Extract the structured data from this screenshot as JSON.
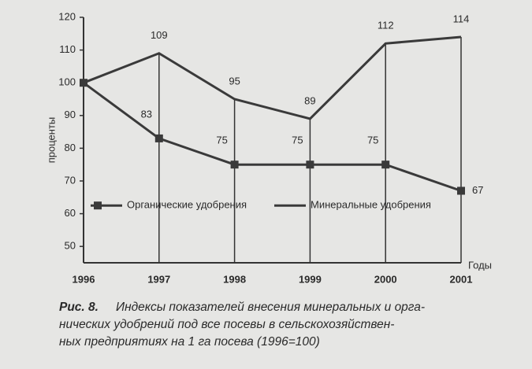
{
  "chart_data": {
    "type": "line",
    "y_label": "проценты",
    "x_label": "Годы",
    "x": [
      1996,
      1997,
      1998,
      1999,
      2000,
      2001
    ],
    "xlim": [
      1996,
      2001
    ],
    "series": [
      {
        "name": "Органические удобрения",
        "color": "#3a3a3a",
        "marker": "square",
        "values": [
          100,
          83,
          75,
          75,
          75,
          67
        ]
      },
      {
        "name": "Минеральные удобрения",
        "color": "#3a3a3a",
        "marker": "none",
        "values": [
          100,
          109,
          95,
          89,
          112,
          114
        ]
      }
    ],
    "ylim": [
      45,
      120
    ],
    "yticks": [
      50,
      60,
      70,
      80,
      90,
      100,
      110,
      120
    ],
    "legend": "lower"
  },
  "caption": {
    "label": "Рис. 8.",
    "lines": [
      "Индексы показателей внесения минеральных и орга-",
      "нических удобрений под все посевы в сельскохозяйствен-",
      "ных предприятиях на 1 га посева (1996=100)"
    ]
  }
}
